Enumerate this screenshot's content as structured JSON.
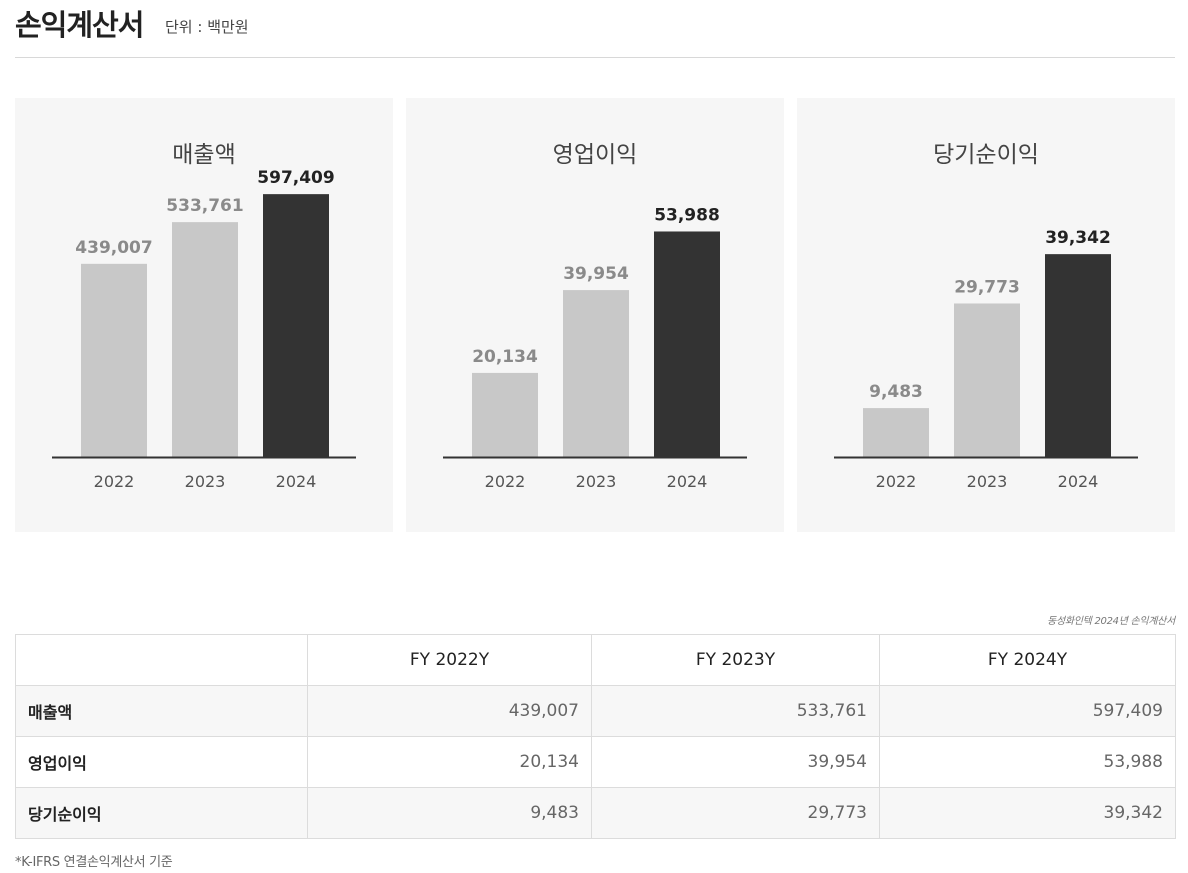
{
  "header": {
    "title": "손익계산서",
    "unit": "단위 : 백만원"
  },
  "chart_data": [
    {
      "type": "bar",
      "title": "매출액",
      "categories": [
        "2022",
        "2023",
        "2024"
      ],
      "values": [
        439007,
        533761,
        597409
      ],
      "value_labels": [
        "439,007",
        "533,761",
        "597,409"
      ],
      "ylim": [
        0,
        750000
      ],
      "highlight_index": 2,
      "colors": {
        "normal": "#c8c8c8",
        "highlight": "#333333"
      }
    },
    {
      "type": "bar",
      "title": "영업이익",
      "categories": [
        "2022",
        "2023",
        "2024"
      ],
      "values": [
        20134,
        39954,
        53988
      ],
      "value_labels": [
        "20,134",
        "39,954",
        "53,988"
      ],
      "ylim": [
        0,
        79000
      ],
      "highlight_index": 2,
      "colors": {
        "normal": "#c8c8c8",
        "highlight": "#333333"
      }
    },
    {
      "type": "bar",
      "title": "당기순이익",
      "categories": [
        "2022",
        "2023",
        "2024"
      ],
      "values": [
        9483,
        29773,
        39342
      ],
      "value_labels": [
        "9,483",
        "29,773",
        "39,342"
      ],
      "ylim": [
        0,
        64000
      ],
      "highlight_index": 2,
      "colors": {
        "normal": "#c8c8c8",
        "highlight": "#333333"
      }
    }
  ],
  "source": "동성화인텍 2024년 손익계산서",
  "table": {
    "headers": [
      "",
      "FY 2022Y",
      "FY 2023Y",
      "FY 2024Y"
    ],
    "rows": [
      {
        "label": "매출액",
        "values": [
          "439,007",
          "533,761",
          "597,409"
        ]
      },
      {
        "label": "영업이익",
        "values": [
          "20,134",
          "39,954",
          "53,988"
        ]
      },
      {
        "label": "당기순이익",
        "values": [
          "9,483",
          "29,773",
          "39,342"
        ]
      }
    ]
  },
  "note": "*K-IFRS 연결손익계산서 기준"
}
